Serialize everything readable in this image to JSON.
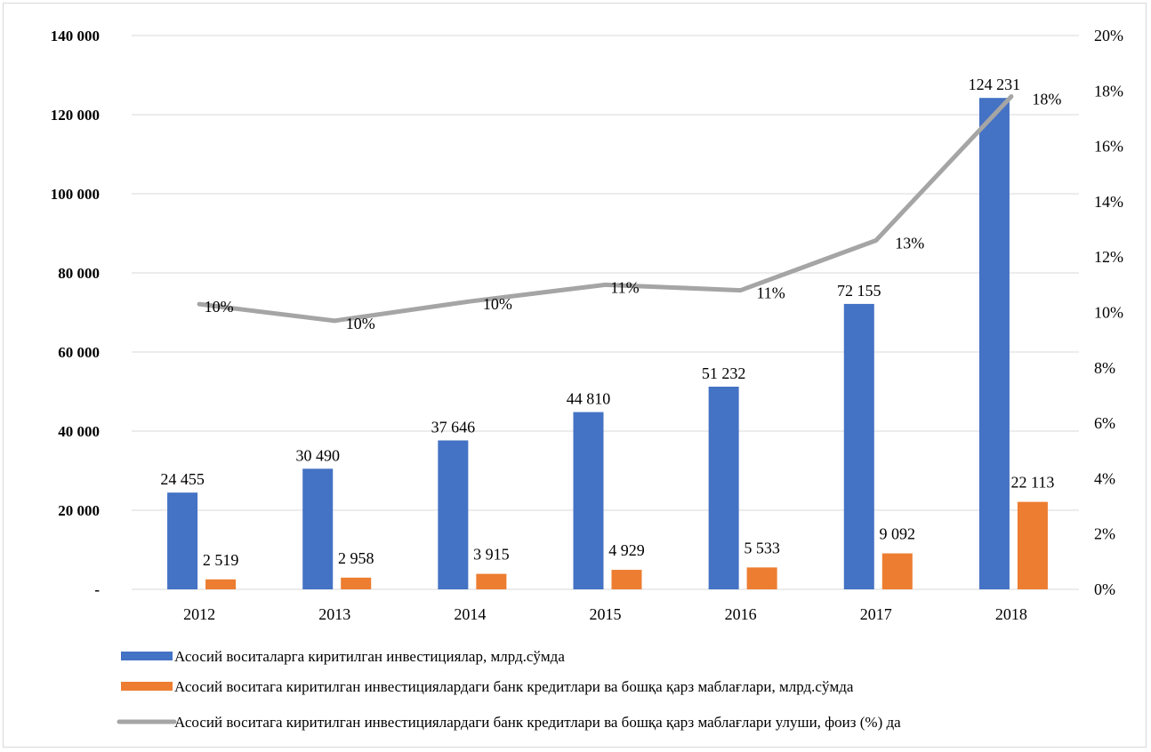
{
  "chart_data": {
    "type": "bar",
    "categories": [
      "2012",
      "2013",
      "2014",
      "2015",
      "2016",
      "2017",
      "2018"
    ],
    "series": [
      {
        "name": "Асосий воситаларга киритилган инвестициялар, млрд.сўмда",
        "kind": "bar",
        "axis": "left",
        "color": "#4472c4",
        "values": [
          24455,
          30490,
          37646,
          44810,
          51232,
          72155,
          124231
        ],
        "labels": [
          "24 455",
          "30 490",
          "37 646",
          "44 810",
          "51 232",
          "72 155",
          "124 231"
        ]
      },
      {
        "name": "Асосий воситага киритилган инвестициялардаги банк кредитлари ва бошқа қарз маблағлари, млрд.сўмда",
        "kind": "bar",
        "axis": "left",
        "color": "#ed7d31",
        "values": [
          2519,
          2958,
          3915,
          4929,
          5533,
          9092,
          22113
        ],
        "labels": [
          "2 519",
          "2 958",
          "3 915",
          "4 929",
          "5 533",
          "9 092",
          "22 113"
        ]
      },
      {
        "name": "Асосий воситага киритилган инвестициялардаги банк кредитлари ва бошқа қарз маблағлари улуши, фоиз (%) да",
        "kind": "line",
        "axis": "right",
        "color": "#a5a5a5",
        "values": [
          10.3,
          9.7,
          10.4,
          11.0,
          10.8,
          12.6,
          17.8
        ],
        "labels": [
          "10%",
          "10%",
          "10%",
          "11%",
          "11%",
          "13%",
          "18%"
        ]
      }
    ],
    "y_left": {
      "ylim": [
        0,
        140000
      ],
      "ticks": [
        0,
        20000,
        40000,
        60000,
        80000,
        100000,
        120000,
        140000
      ],
      "tick_labels": [
        "-",
        "20 000",
        "40 000",
        "60 000",
        "80 000",
        "100 000",
        "120 000",
        "140 000"
      ]
    },
    "y_right": {
      "ylim": [
        0,
        20
      ],
      "ticks": [
        0,
        2,
        4,
        6,
        8,
        10,
        12,
        14,
        16,
        18,
        20
      ],
      "tick_labels": [
        "0%",
        "2%",
        "4%",
        "6%",
        "8%",
        "10%",
        "12%",
        "14%",
        "16%",
        "18%",
        "20%"
      ]
    },
    "grid": true,
    "legend_position": "bottom-left"
  }
}
